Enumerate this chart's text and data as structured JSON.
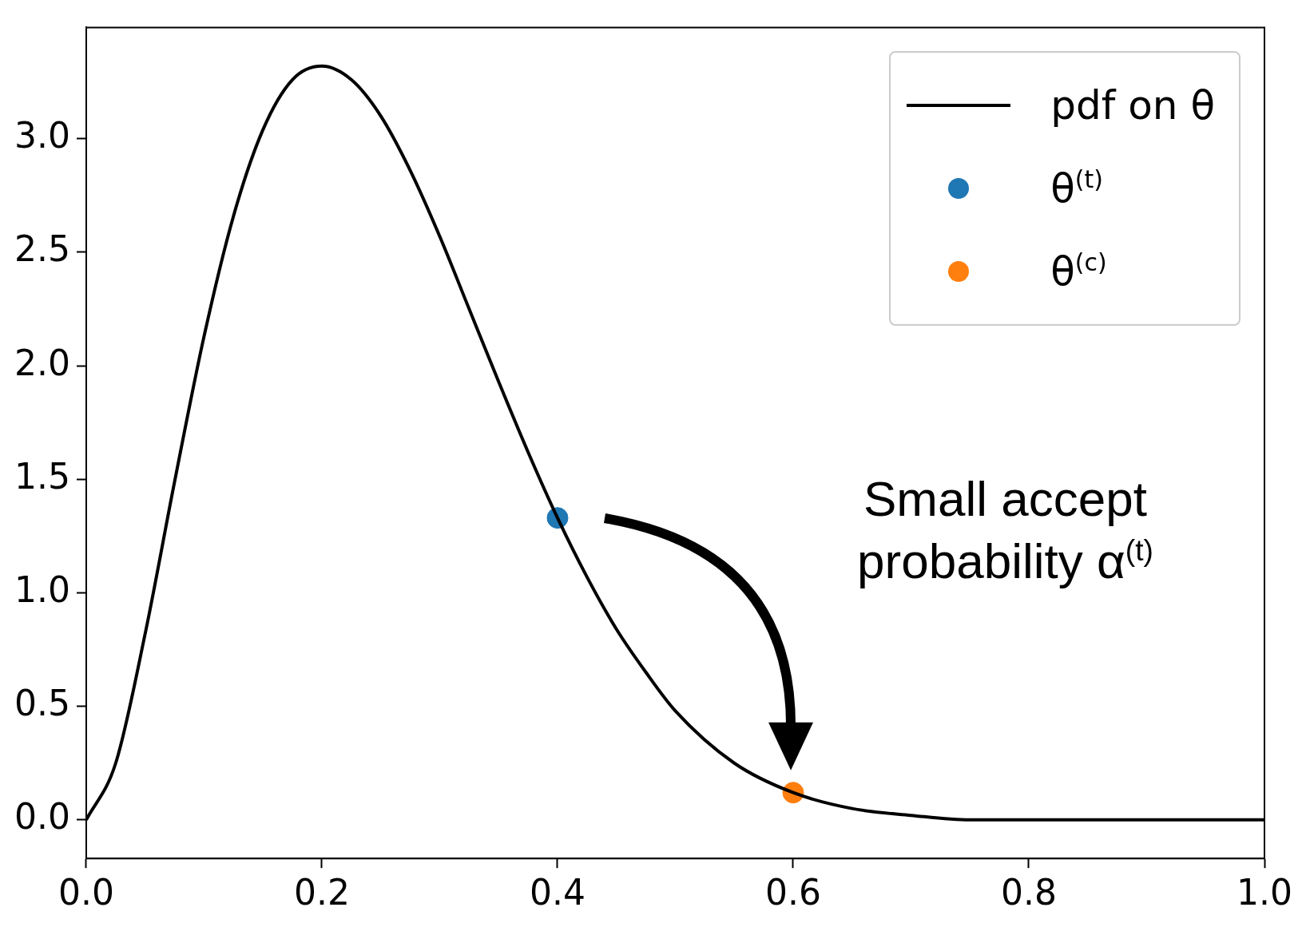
{
  "chart_data": {
    "type": "line",
    "x": [
      0,
      0.025,
      0.05,
      0.075,
      0.1,
      0.125,
      0.15,
      0.175,
      0.2,
      0.225,
      0.25,
      0.275,
      0.3,
      0.325,
      0.35,
      0.375,
      0.4,
      0.425,
      0.45,
      0.475,
      0.5,
      0.55,
      0.6,
      0.65,
      0.7,
      0.75,
      0.8,
      0.9,
      1.0
    ],
    "series": [
      {
        "name": "pdf on θ",
        "marker": "none",
        "color": "#000000",
        "values": [
          0,
          0.25,
          0.82,
          1.49,
          2.13,
          2.66,
          3.04,
          3.26,
          3.32,
          3.26,
          3.1,
          2.86,
          2.57,
          2.25,
          1.93,
          1.62,
          1.33,
          1.07,
          0.84,
          0.65,
          0.48,
          0.25,
          0.12,
          0.05,
          0.02,
          0.0,
          0.0,
          0,
          0
        ]
      },
      {
        "name": "θ$^{(t)}$",
        "type": "scatter",
        "marker": "circle",
        "color": "#1f77b4",
        "x": [
          0.4
        ],
        "values": [
          1.33
        ]
      },
      {
        "name": "θ$^{(c)}$",
        "type": "scatter",
        "marker": "circle",
        "color": "#ff7f0e",
        "x": [
          0.6
        ],
        "values": [
          0.12
        ]
      }
    ],
    "annotations": [
      "Small accept probability α$^{(t)}$"
    ],
    "xlim": [
      0,
      1
    ],
    "xticks": [
      {
        "value": 0,
        "label": "0.0"
      },
      0.2,
      0.4,
      0.6,
      0.8,
      {
        "value": 1,
        "label": "1.0"
      }
    ],
    "ylim": [
      -0.17,
      3.49
    ],
    "yticks": [
      {
        "value": 0,
        "label": "0.0"
      },
      0.5,
      {
        "value": 1,
        "label": "1.0"
      },
      1.5,
      {
        "value": 2,
        "label": "2.0"
      },
      2.5,
      {
        "value": 3,
        "label": "3.0"
      }
    ],
    "grid": false,
    "legend": "top right",
    "line_style": "solid"
  }
}
